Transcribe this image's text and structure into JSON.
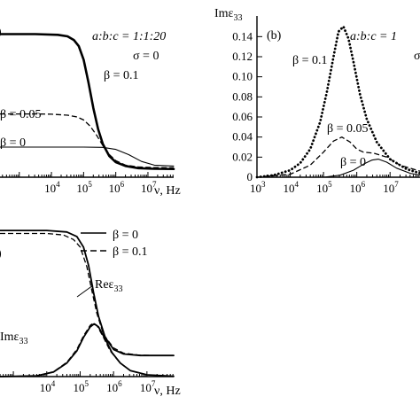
{
  "chart_data": [
    {
      "id": "a",
      "type": "line",
      "panel_label": ")",
      "xlabel": "ν, Hz",
      "x_scale": "log",
      "xlim_log10": [
        2.4,
        7.8
      ],
      "ylim": [
        0,
        1.0
      ],
      "x_tick_labels": [
        {
          "exp": 4,
          "text": "10",
          "sup": "4"
        },
        {
          "exp": 5,
          "text": "10",
          "sup": "5"
        },
        {
          "exp": 6,
          "text": "10",
          "sup": "6"
        },
        {
          "exp": 7,
          "text": "10",
          "sup": "7"
        }
      ],
      "annotations": [
        "a:b:c = 1:1:20",
        "σ = 0"
      ],
      "series": [
        {
          "name": "β = 0.1",
          "style": "thick",
          "x_log10": [
            2.4,
            3.5,
            4.2,
            4.5,
            4.7,
            4.85,
            5.0,
            5.15,
            5.3,
            5.45,
            5.6,
            5.8,
            6.0,
            6.3,
            6.7,
            7.2,
            7.8
          ],
          "y": [
            0.95,
            0.95,
            0.945,
            0.935,
            0.91,
            0.87,
            0.78,
            0.63,
            0.46,
            0.32,
            0.22,
            0.14,
            0.1,
            0.075,
            0.06,
            0.056,
            0.055
          ]
        },
        {
          "name": "β = 0.05",
          "style": "dashed",
          "x_log10": [
            2.4,
            3.5,
            4.0,
            4.5,
            4.8,
            5.0,
            5.2,
            5.4,
            5.6,
            5.8,
            6.0,
            6.3,
            6.7,
            7.2,
            7.8
          ],
          "y": [
            0.42,
            0.42,
            0.418,
            0.412,
            0.4,
            0.38,
            0.34,
            0.28,
            0.21,
            0.15,
            0.11,
            0.08,
            0.068,
            0.064,
            0.063
          ]
        },
        {
          "name": "β = 0",
          "style": "thin",
          "x_log10": [
            2.4,
            4.0,
            5.0,
            5.6,
            6.0,
            6.4,
            6.8,
            7.2,
            7.8
          ],
          "y": [
            0.2,
            0.2,
            0.2,
            0.198,
            0.185,
            0.15,
            0.105,
            0.08,
            0.074
          ]
        }
      ]
    },
    {
      "id": "b",
      "type": "line",
      "panel_label": "(b)",
      "ylabel": "Imε₃₃",
      "xlabel": "",
      "x_scale": "log",
      "xlim_log10": [
        3,
        7.9
      ],
      "ylim": [
        0,
        0.15
      ],
      "x_tick_labels": [
        {
          "exp": 3,
          "text": "10",
          "sup": "3"
        },
        {
          "exp": 4,
          "text": "10",
          "sup": "4"
        },
        {
          "exp": 5,
          "text": "10",
          "sup": "5"
        },
        {
          "exp": 6,
          "text": "10",
          "sup": "6"
        },
        {
          "exp": 7,
          "text": "10",
          "sup": "7"
        }
      ],
      "y_ticks": [
        "0",
        "0.02",
        "0.04",
        "0.06",
        "0.08",
        "0.10",
        "0.12",
        "0.14"
      ],
      "y_tick_values": [
        0,
        0.02,
        0.04,
        0.06,
        0.08,
        0.1,
        0.12,
        0.14
      ],
      "annotations": [
        "a:b:c = 1",
        "σ"
      ],
      "series": [
        {
          "name": "β = 0.1",
          "style": "dotted",
          "x_log10": [
            3,
            3.5,
            4.0,
            4.3,
            4.6,
            4.9,
            5.1,
            5.3,
            5.45,
            5.6,
            5.75,
            5.9,
            6.1,
            6.3,
            6.6,
            7.0,
            7.5,
            7.9
          ],
          "y": [
            0.0,
            0.002,
            0.007,
            0.014,
            0.028,
            0.055,
            0.085,
            0.12,
            0.145,
            0.15,
            0.138,
            0.115,
            0.082,
            0.058,
            0.035,
            0.018,
            0.008,
            0.004
          ]
        },
        {
          "name": "β = 0.05",
          "style": "dashed",
          "x_log10": [
            3,
            4.0,
            4.6,
            5.0,
            5.3,
            5.55,
            5.8,
            6.0,
            6.2,
            6.5,
            6.9,
            7.3,
            7.9
          ],
          "y": [
            0.0,
            0.003,
            0.012,
            0.025,
            0.036,
            0.04,
            0.035,
            0.028,
            0.025,
            0.024,
            0.02,
            0.012,
            0.006
          ]
        },
        {
          "name": "β = 0",
          "style": "thin",
          "x_log10": [
            3,
            5.0,
            5.5,
            5.9,
            6.2,
            6.45,
            6.65,
            6.9,
            7.2,
            7.6,
            7.9
          ],
          "y": [
            0.0,
            0.0,
            0.002,
            0.007,
            0.013,
            0.017,
            0.018,
            0.015,
            0.009,
            0.004,
            0.002
          ]
        }
      ]
    },
    {
      "id": "c",
      "type": "line",
      "panel_label": ")",
      "xlabel": "ν, Hz",
      "x_scale": "log",
      "xlim_log10": [
        2.6,
        7.8
      ],
      "ylim": [
        0,
        1.0
      ],
      "x_tick_labels": [
        {
          "exp": 4,
          "text": "10",
          "sup": "4"
        },
        {
          "exp": 5,
          "text": "10",
          "sup": "5"
        },
        {
          "exp": 6,
          "text": "10",
          "sup": "6"
        },
        {
          "exp": 7,
          "text": "10",
          "sup": "7"
        }
      ],
      "legend": [
        {
          "name": "β = 0",
          "style": "solid"
        },
        {
          "name": "β = 0.1",
          "style": "dashed"
        }
      ],
      "curve_labels": [
        "Reε₃₃",
        "Imε₃₃"
      ],
      "series": [
        {
          "name": "β = 0",
          "part": "Re",
          "style": "solid",
          "x_log10": [
            2.6,
            4.0,
            4.6,
            4.9,
            5.1,
            5.25,
            5.4,
            5.55,
            5.75,
            6.0,
            6.3,
            6.8,
            7.3,
            7.8
          ],
          "y": [
            0.97,
            0.97,
            0.96,
            0.93,
            0.86,
            0.74,
            0.56,
            0.4,
            0.26,
            0.18,
            0.15,
            0.14,
            0.14,
            0.14
          ]
        },
        {
          "name": "β = 0.1",
          "part": "Re",
          "style": "dashed",
          "x_log10": [
            2.6,
            4.0,
            4.5,
            4.8,
            5.0,
            5.2,
            5.35,
            5.5,
            5.7,
            6.0,
            6.3,
            6.8,
            7.3,
            7.8
          ],
          "y": [
            0.95,
            0.95,
            0.94,
            0.91,
            0.86,
            0.73,
            0.57,
            0.42,
            0.28,
            0.19,
            0.155,
            0.142,
            0.14,
            0.14
          ]
        },
        {
          "name": "β = 0",
          "part": "Im",
          "style": "solid",
          "x_log10": [
            2.6,
            3.7,
            4.2,
            4.6,
            4.9,
            5.1,
            5.3,
            5.42,
            5.55,
            5.75,
            5.95,
            6.2,
            6.5,
            7.0,
            7.8
          ],
          "y": [
            0.0,
            0.005,
            0.03,
            0.09,
            0.17,
            0.26,
            0.33,
            0.35,
            0.33,
            0.25,
            0.16,
            0.09,
            0.04,
            0.012,
            0.002
          ]
        },
        {
          "name": "β = 0.1",
          "part": "Im",
          "style": "dashed",
          "x_log10": [
            2.6,
            3.7,
            4.2,
            4.6,
            4.9,
            5.1,
            5.3,
            5.4,
            5.5,
            5.7,
            5.9,
            6.2,
            6.5,
            7.0,
            7.8
          ],
          "y": [
            0.0,
            0.005,
            0.032,
            0.095,
            0.18,
            0.27,
            0.34,
            0.355,
            0.34,
            0.26,
            0.17,
            0.09,
            0.04,
            0.012,
            0.002
          ]
        }
      ]
    }
  ],
  "labels": {
    "a_panel": ")",
    "a_ratio": "a:b:c = 1:1:20",
    "a_sigma": "σ = 0",
    "a_beta01": "β = 0.1",
    "a_beta005": "β = 0.05",
    "a_beta0": "β = 0",
    "a_xlabel": "ν, Hz",
    "b_panel": "(b)",
    "b_ratio": "a:b:c = 1",
    "b_sigma": "σ",
    "b_ylabel": "Imε",
    "b_ylabel_sub": "33",
    "b_beta01": "β = 0.1",
    "b_beta005": "β = 0.05",
    "b_beta0": "β = 0",
    "c_panel": ")",
    "c_xlabel": "ν, Hz",
    "c_legend_beta0": "β = 0",
    "c_legend_beta01": "β = 0.1",
    "c_re": "Reε",
    "c_re_sub": "33",
    "c_im": "Imε",
    "c_im_sub": "33"
  }
}
